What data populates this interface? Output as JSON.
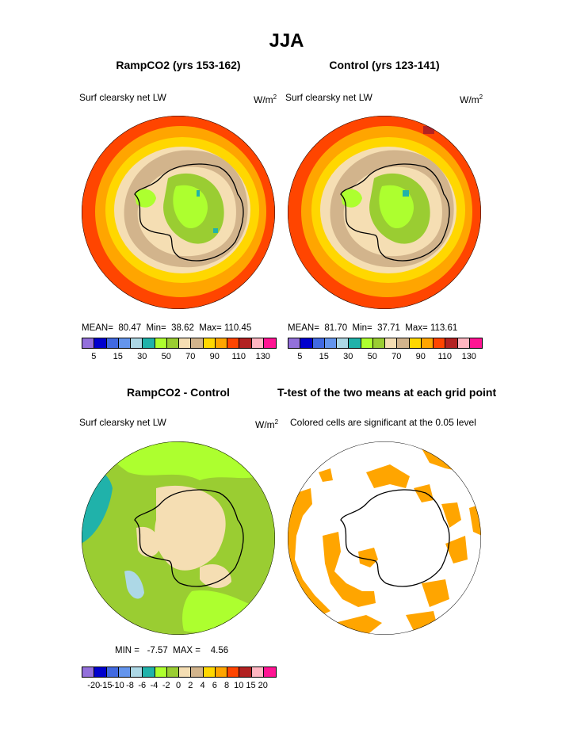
{
  "title": "JJA",
  "panels": {
    "top_left": {
      "title": "RampCO2 (yrs 153-162)",
      "left_label": "Surf clearsky net LW",
      "units": "W/m",
      "units_exp": "2",
      "stats": "MEAN=  80.47  Min=  38.62  Max= 110.45"
    },
    "top_right": {
      "title": "Control (yrs 123-141)",
      "left_label": "Surf clearsky net LW",
      "units": "W/m",
      "units_exp": "2",
      "stats": "MEAN=  81.70  Min=  37.71  Max= 113.61"
    },
    "bottom_left": {
      "title": "RampCO2 - Control",
      "left_label": "Surf clearsky net LW",
      "units": "W/m",
      "units_exp": "2",
      "stats": "MIN =   -7.57  MAX =    4.56"
    },
    "bottom_right": {
      "title": "T-test of the two means at each grid point",
      "left_label": "Colored cells are significant at the 0.05 level"
    }
  },
  "colorbar_top": {
    "colors": [
      "#9370DB",
      "#0000CD",
      "#4169E1",
      "#6495ED",
      "#ADD8E6",
      "#20B2AA",
      "#ADFF2F",
      "#9ACD32",
      "#F5DEB3",
      "#D2B48C",
      "#FFD700",
      "#FFA500",
      "#FF4500",
      "#B22222",
      "#FFB6C1",
      "#FF1493"
    ],
    "labels": [
      "5",
      "15",
      "30",
      "50",
      "70",
      "90",
      "110",
      "130"
    ]
  },
  "colorbar_bottom": {
    "colors": [
      "#9370DB",
      "#0000CD",
      "#4169E1",
      "#6495ED",
      "#ADD8E6",
      "#20B2AA",
      "#ADFF2F",
      "#9ACD32",
      "#F5DEB3",
      "#D2B48C",
      "#FFD700",
      "#FFA500",
      "#FF4500",
      "#B22222",
      "#FFB6C1",
      "#FF1493"
    ],
    "labels": [
      "-20",
      "-15",
      "-10",
      "-8",
      "-6",
      "-4",
      "-2",
      "0",
      "2",
      "4",
      "6",
      "8",
      "10",
      "15",
      "20"
    ]
  },
  "significance_color": "#FFA500"
}
